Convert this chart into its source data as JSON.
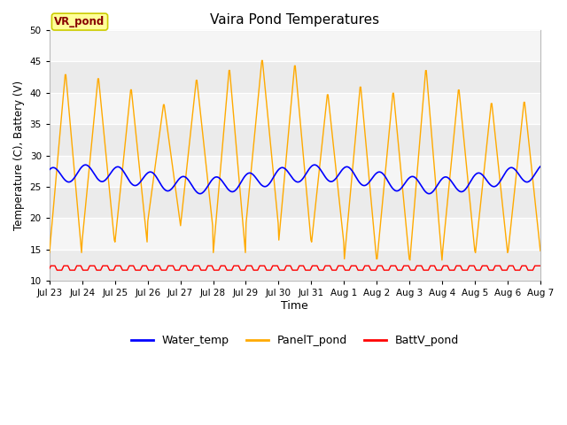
{
  "title": "Vaira Pond Temperatures",
  "xlabel": "Time",
  "ylabel": "Temperature (C), Battery (V)",
  "ylim": [
    10,
    50
  ],
  "yticks": [
    10,
    15,
    20,
    25,
    30,
    35,
    40,
    45,
    50
  ],
  "x_labels": [
    "Jul 23",
    "Jul 24",
    "Jul 25",
    "Jul 26",
    "Jul 27",
    "Jul 28",
    "Jul 29",
    "Jul 30",
    "Jul 31",
    "Aug 1",
    "Aug 2",
    "Aug 3",
    "Aug 4",
    "Aug 5",
    "Aug 6",
    "Aug 7"
  ],
  "water_color": "#0000ff",
  "panel_color": "#ffaa00",
  "batt_color": "#ff0000",
  "bg_color": "#ebebeb",
  "bg_color2": "#f5f5f5",
  "station_label": "VR_pond",
  "station_label_bg": "#ffff99",
  "station_label_border": "#cccc00",
  "station_label_text": "#880000",
  "legend_labels": [
    "Water_temp",
    "PanelT_pond",
    "BattV_pond"
  ],
  "n_days": 15,
  "panel_peaks": [
    43.5,
    42.8,
    41.0,
    38.5,
    42.5,
    44.2,
    45.7,
    44.9,
    40.2,
    41.5,
    40.5,
    44.2,
    41.0,
    38.8,
    39.0
  ],
  "panel_troughs": [
    14.5,
    16.5,
    16.2,
    19.5,
    18.8,
    14.5,
    19.2,
    16.5,
    16.2,
    13.5,
    13.5,
    13.3,
    14.8,
    14.5,
    14.8
  ],
  "water_base": 26.2,
  "batt_base": 12.0,
  "batt_hi": 12.4,
  "batt_lo": 11.7
}
